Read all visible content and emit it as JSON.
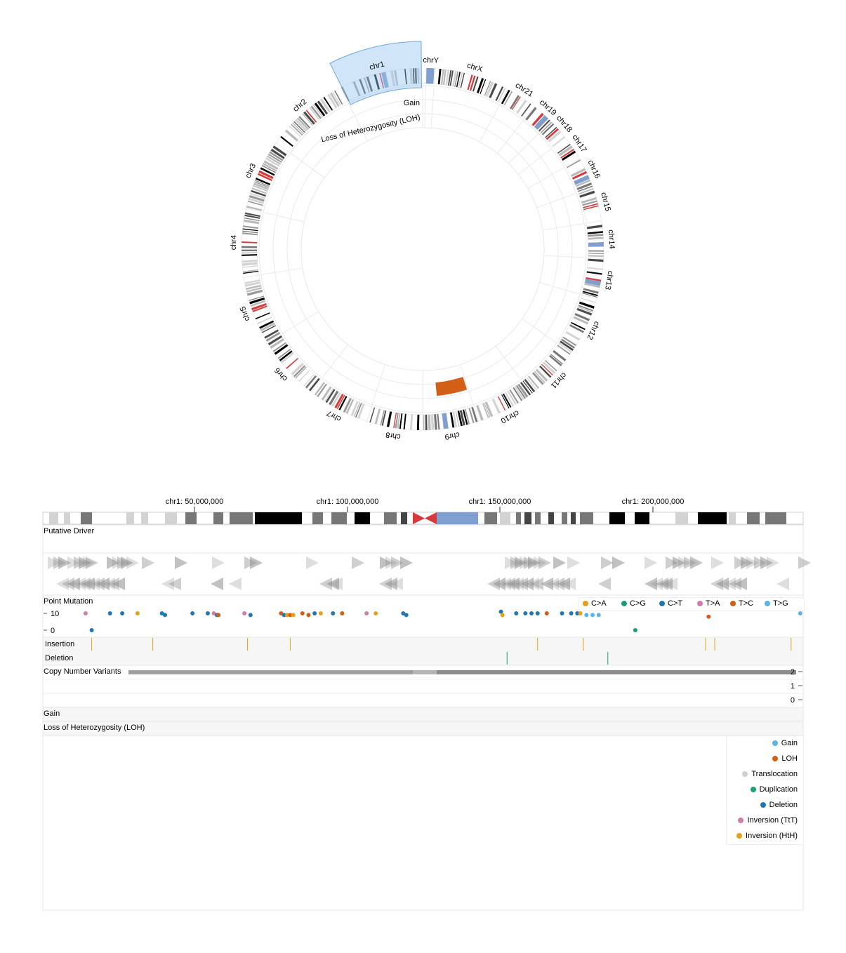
{
  "circos": {
    "chromosomes": [
      "chr1",
      "chr2",
      "chr3",
      "chr4",
      "chr5",
      "chr6",
      "chr7",
      "chr8",
      "chr9",
      "chr10",
      "chr11",
      "chr12",
      "chr13",
      "chr14",
      "chr15",
      "chr16",
      "chr17",
      "chr18",
      "chr19",
      "chr21",
      "chrX",
      "chrY"
    ],
    "track_labels": [
      "Gain",
      "Loss of Heterozygosity (LOH)"
    ],
    "selected": "chr1"
  },
  "linear": {
    "axis_ticks": [
      "chr1: 50,000,000",
      "chr1: 100,000,000",
      "chr1: 150,000,000",
      "chr1: 200,000,000"
    ],
    "tracks": {
      "putative_driver": "Putative Driver",
      "point_mutation": "Point Mutation",
      "insertion": "Insertion",
      "deletion": "Deletion",
      "cnv": "Copy Number Variants",
      "gain": "Gain",
      "loh": "Loss of Heterozygosity (LOH)"
    },
    "pm_ticks": [
      "10",
      "0"
    ],
    "cnv_ticks": [
      "2",
      "1",
      "0"
    ]
  },
  "chart_data": {
    "type": "scatter",
    "title": "",
    "x_range": [
      1,
      248956422
    ],
    "point_mutations": {
      "legend": [
        "C>A",
        "C>G",
        "C>T",
        "T>A",
        "T>C",
        "T>G"
      ],
      "colors": {
        "C>A": "#e6a01b",
        "C>G": "#1a9e77",
        "C>T": "#1f78b4",
        "T>A": "#d17bb0",
        "T>C": "#d35f16",
        "T>G": "#5ab4e5"
      },
      "points": [
        {
          "x": 14000000,
          "y": 10,
          "cls": "T>A"
        },
        {
          "x": 16000000,
          "y": 0,
          "cls": "C>T"
        },
        {
          "x": 22000000,
          "y": 10,
          "cls": "C>T"
        },
        {
          "x": 26000000,
          "y": 10,
          "cls": "C>T"
        },
        {
          "x": 31000000,
          "y": 10,
          "cls": "C>A"
        },
        {
          "x": 39000000,
          "y": 10,
          "cls": "C>T"
        },
        {
          "x": 40000000,
          "y": 9,
          "cls": "C>T"
        },
        {
          "x": 49000000,
          "y": 10,
          "cls": "C>T"
        },
        {
          "x": 54000000,
          "y": 10,
          "cls": "C>T"
        },
        {
          "x": 56000000,
          "y": 10,
          "cls": "T>A"
        },
        {
          "x": 57000000,
          "y": 9,
          "cls": "C>T"
        },
        {
          "x": 57500000,
          "y": 9,
          "cls": "T>C"
        },
        {
          "x": 66000000,
          "y": 10,
          "cls": "T>A"
        },
        {
          "x": 68000000,
          "y": 9,
          "cls": "C>T"
        },
        {
          "x": 78000000,
          "y": 10,
          "cls": "T>C"
        },
        {
          "x": 79000000,
          "y": 9,
          "cls": "C>T"
        },
        {
          "x": 80000000,
          "y": 9,
          "cls": "C>A"
        },
        {
          "x": 81000000,
          "y": 9,
          "cls": "T>C"
        },
        {
          "x": 82000000,
          "y": 9,
          "cls": "C>A"
        },
        {
          "x": 85000000,
          "y": 10,
          "cls": "T>C"
        },
        {
          "x": 87000000,
          "y": 9,
          "cls": "T>C"
        },
        {
          "x": 89000000,
          "y": 10,
          "cls": "C>T"
        },
        {
          "x": 91000000,
          "y": 10,
          "cls": "C>A"
        },
        {
          "x": 95000000,
          "y": 10,
          "cls": "C>T"
        },
        {
          "x": 98000000,
          "y": 10,
          "cls": "T>C"
        },
        {
          "x": 106000000,
          "y": 10,
          "cls": "T>A"
        },
        {
          "x": 109000000,
          "y": 10,
          "cls": "C>A"
        },
        {
          "x": 118000000,
          "y": 10,
          "cls": "C>T"
        },
        {
          "x": 119000000,
          "y": 9,
          "cls": "C>T"
        },
        {
          "x": 150000000,
          "y": 11,
          "cls": "C>T"
        },
        {
          "x": 150500000,
          "y": 9,
          "cls": "C>A"
        },
        {
          "x": 155000000,
          "y": 10,
          "cls": "C>T"
        },
        {
          "x": 158000000,
          "y": 10,
          "cls": "C>T"
        },
        {
          "x": 160000000,
          "y": 10,
          "cls": "C>T"
        },
        {
          "x": 162000000,
          "y": 10,
          "cls": "C>T"
        },
        {
          "x": 165000000,
          "y": 10,
          "cls": "T>C"
        },
        {
          "x": 170000000,
          "y": 10,
          "cls": "C>T"
        },
        {
          "x": 173000000,
          "y": 10,
          "cls": "C>T"
        },
        {
          "x": 175000000,
          "y": 10,
          "cls": "C>T"
        },
        {
          "x": 176000000,
          "y": 10,
          "cls": "C>A"
        },
        {
          "x": 178000000,
          "y": 9,
          "cls": "T>G"
        },
        {
          "x": 180000000,
          "y": 9,
          "cls": "T>G"
        },
        {
          "x": 182000000,
          "y": 9,
          "cls": "T>G"
        },
        {
          "x": 194000000,
          "y": 0,
          "cls": "C>G"
        },
        {
          "x": 218000000,
          "y": 8,
          "cls": "T>C"
        },
        {
          "x": 248000000,
          "y": 10,
          "cls": "T>G"
        }
      ]
    },
    "insertions": [
      16000000,
      36000000,
      67000000,
      81000000,
      162000000,
      177000000,
      217000000,
      220000000,
      245000000
    ],
    "deletions": [
      152000000,
      185000000
    ],
    "cnv": {
      "y_range": [
        0,
        2
      ],
      "levels": [
        2,
        1,
        0
      ]
    },
    "gain_segments": [],
    "loh_segments": [
      {
        "chrom": "chr9",
        "start": 0,
        "end": 45000000
      }
    ],
    "sv_legend": [
      {
        "label": "Gain",
        "color": "#5ab4e5"
      },
      {
        "label": "LOH",
        "color": "#d35f16"
      },
      {
        "label": "Translocation",
        "color": "#cfcfcf"
      },
      {
        "label": "Duplication",
        "color": "#1a9e77"
      },
      {
        "label": "Deletion",
        "color": "#1f78b4"
      },
      {
        "label": "Inversion (TtT)",
        "color": "#d17bb0"
      },
      {
        "label": "Inversion (HtH)",
        "color": "#e6a01b"
      }
    ]
  }
}
